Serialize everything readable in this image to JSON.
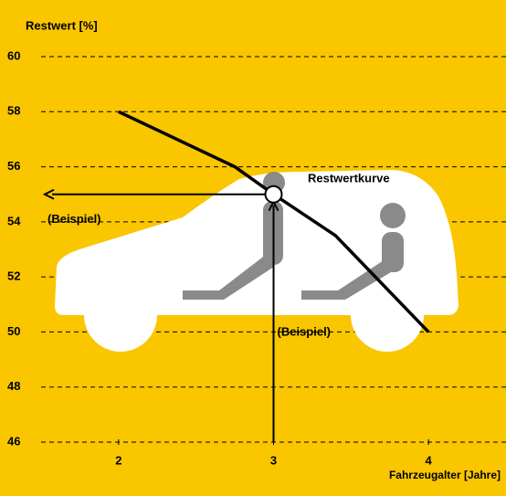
{
  "chart_data": {
    "type": "line",
    "y_label": "Restwert [%]",
    "x_label": "Fahrzeugalter [Jahre]",
    "curve_label": "Restwertkurve",
    "x": [
      2,
      2.75,
      3,
      3.4,
      4
    ],
    "series": [
      {
        "name": "Restwertkurve",
        "color": "#000000",
        "values": [
          58,
          56,
          55,
          53.5,
          50
        ]
      }
    ],
    "xlim": [
      1.5,
      4.5
    ],
    "xticks": [
      2,
      3,
      4
    ],
    "ylim": [
      46,
      60
    ],
    "yticks": [
      46,
      48,
      50,
      52,
      54,
      56,
      58,
      60
    ],
    "grid": true,
    "example": {
      "x": 3,
      "y": 55,
      "label_y": "(Beispiel)",
      "label_x": "(Beispiel)"
    }
  }
}
